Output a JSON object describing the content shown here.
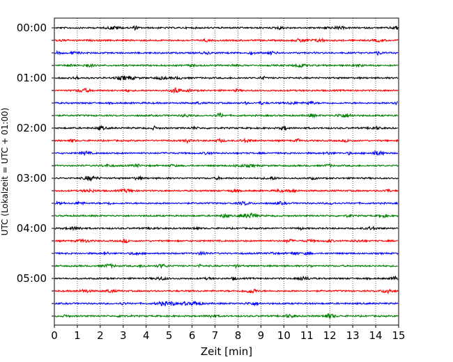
{
  "chart_data": {
    "type": "line",
    "title": "",
    "xlabel": "Zeit  [min]",
    "ylabel": "UTC (Lokalzeit = UTC + 01:00)",
    "xlim": [
      0,
      15
    ],
    "xticks": [
      0,
      1,
      2,
      3,
      4,
      5,
      6,
      7,
      8,
      9,
      10,
      11,
      12,
      13,
      14,
      15
    ],
    "row_times": [
      "00:00",
      "00:15",
      "00:30",
      "00:45",
      "01:00",
      "01:15",
      "01:30",
      "01:45",
      "02:00",
      "02:15",
      "02:30",
      "02:45",
      "03:00",
      "03:15",
      "03:30",
      "03:45",
      "04:00",
      "04:15",
      "04:30",
      "04:45",
      "05:00",
      "05:15",
      "05:30",
      "05:45"
    ],
    "ytick_labels": [
      "00:00",
      "01:00",
      "02:00",
      "03:00",
      "04:00",
      "05:00"
    ],
    "trace_colors": [
      "#000000",
      "#ff0000",
      "#0000ff",
      "#008000"
    ],
    "grid": "vertical dotted lines at each minute",
    "legend": "none"
  }
}
